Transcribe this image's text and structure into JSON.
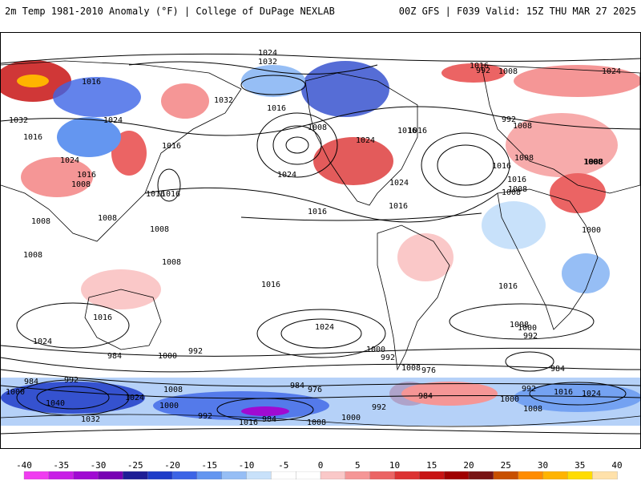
{
  "header": {
    "title_left": "2m Temp 1981-2010 Anomaly (°F) | College of DuPage NEXLAB",
    "title_right": "00Z GFS | F039 Valid: 15Z THU MAR 27 2025"
  },
  "map": {
    "isobar_labels": [
      "1024",
      "1032",
      "1016",
      "1016",
      "1016",
      "1024",
      "1032",
      "1016",
      "1008",
      "1016",
      "1024",
      "1016",
      "1008",
      "1032",
      "1024",
      "1024",
      "1016",
      "1008",
      "1016",
      "1008",
      "1008",
      "1016",
      "1008",
      "1016",
      "1024",
      "1016",
      "992",
      "1008",
      "1024",
      "992",
      "1016",
      "1016",
      "1008",
      "1008",
      "1008",
      "1016",
      "1008",
      "1008",
      "1000",
      "1008",
      "1008",
      "1016",
      "1016",
      "1024",
      "1016",
      "1008",
      "1008",
      "1000",
      "992",
      "984",
      "1024",
      "984",
      "1000",
      "992",
      "1000",
      "992",
      "976",
      "984",
      "976",
      "984",
      "1000",
      "992",
      "1016",
      "1024",
      "984",
      "1000",
      "992",
      "1040",
      "1024",
      "1008",
      "1000",
      "992",
      "984",
      "1008",
      "1000",
      "992",
      "1008",
      "1032",
      "1016"
    ]
  },
  "colorbar": {
    "labels": [
      "-40",
      "-35",
      "-30",
      "-25",
      "-20",
      "-15",
      "-10",
      "-5",
      "0",
      "5",
      "10",
      "15",
      "20",
      "25",
      "30",
      "35",
      "40"
    ],
    "colors": [
      "#f03cf0",
      "#c81ee6",
      "#a00ad2",
      "#7800b4",
      "#1e1e96",
      "#1e3cc8",
      "#3c64e6",
      "#6496f0",
      "#96bef5",
      "#c8e1fa",
      "#ffffff",
      "#ffffff",
      "#fac8c8",
      "#f59696",
      "#eb6464",
      "#dc3232",
      "#c81414",
      "#a00000",
      "#781414",
      "#c85000",
      "#ff8c00",
      "#ffb400",
      "#ffdc00",
      "#ffe1aa"
    ]
  },
  "colors": {
    "warm_anomaly": "#f59696",
    "cold_anomaly": "#6496f0",
    "coastline": "#000000",
    "isobar": "#000000"
  }
}
